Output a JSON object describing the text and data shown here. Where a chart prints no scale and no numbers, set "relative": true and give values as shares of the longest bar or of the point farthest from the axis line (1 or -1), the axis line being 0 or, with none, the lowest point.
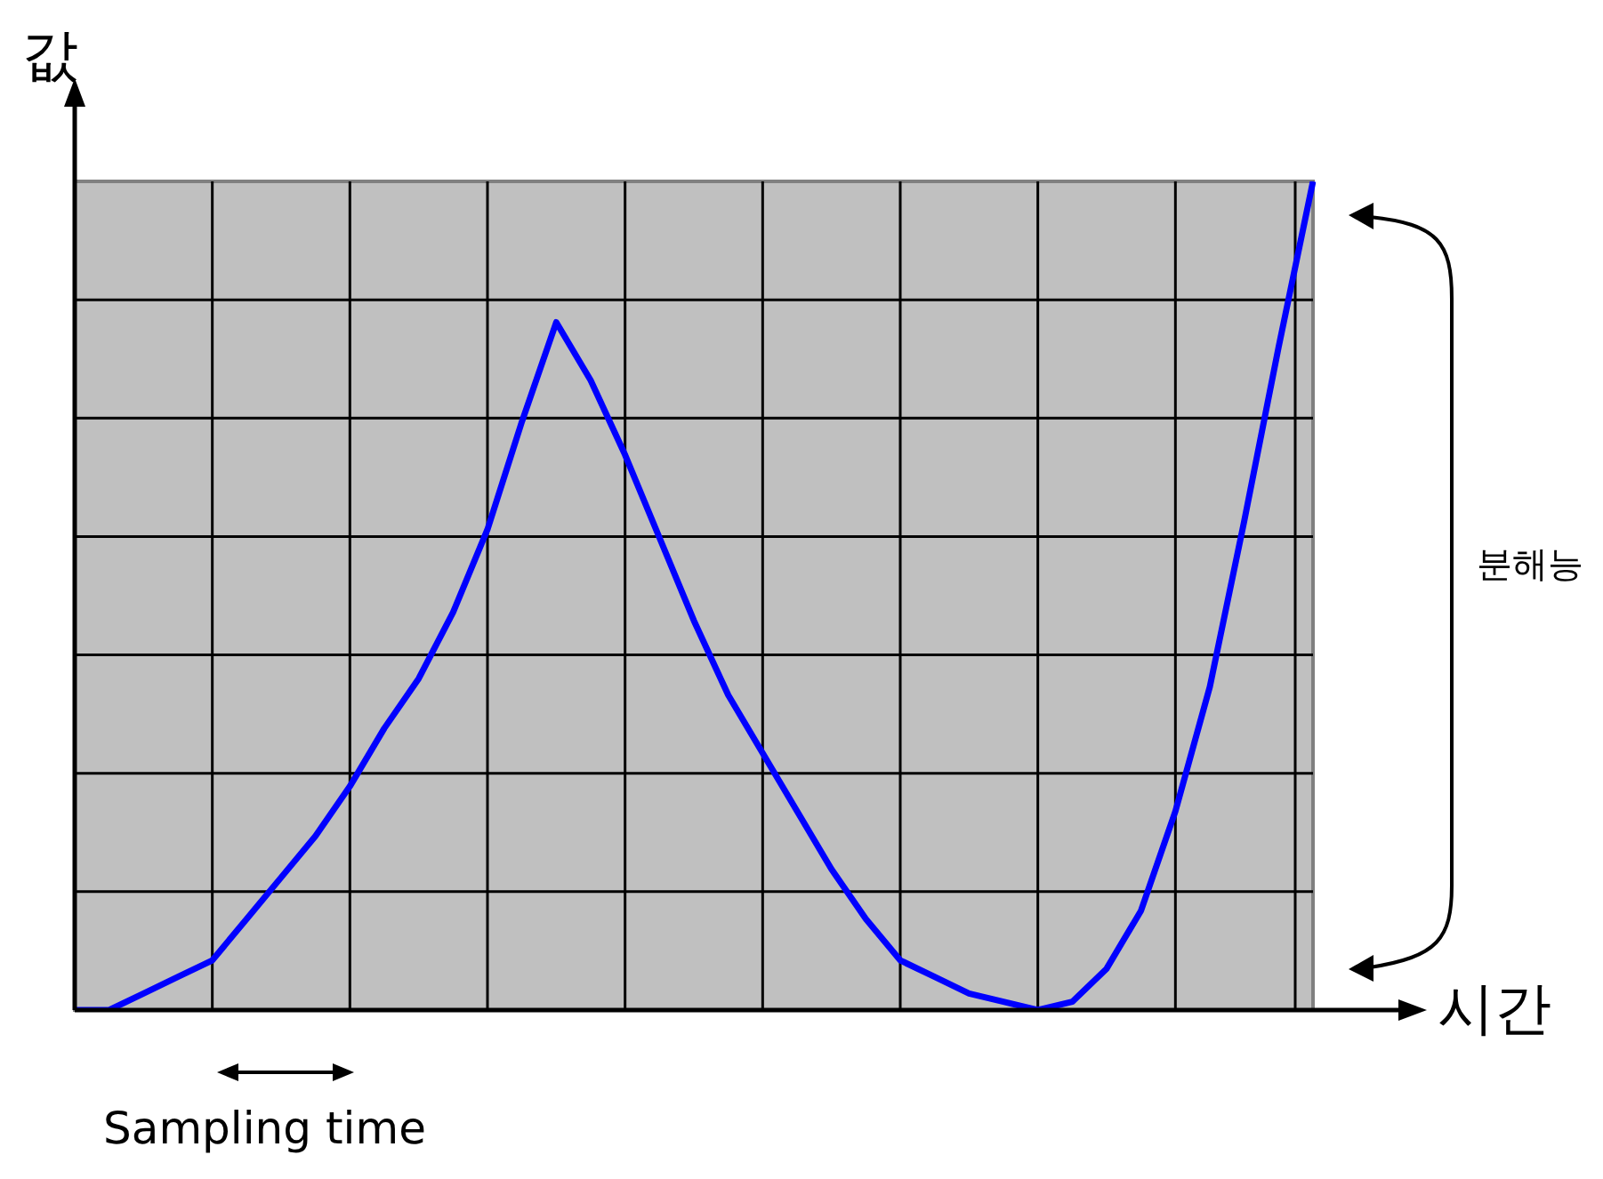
{
  "chart_data": {
    "type": "line",
    "xlabel": "시간",
    "ylabel": "값",
    "relative": true,
    "grid": true,
    "annotations": [
      "Sampling time",
      "분해능"
    ],
    "categories": [
      null,
      null,
      null,
      null,
      null,
      null,
      null,
      null,
      null,
      null,
      null,
      null,
      null,
      null,
      null,
      null,
      null,
      null,
      null,
      null,
      null,
      null,
      null,
      null,
      null,
      null,
      null,
      null,
      null,
      null,
      null,
      null,
      null,
      null,
      null,
      null,
      null
    ],
    "series": [
      {
        "color": "#0000ff",
        "values": [
          0,
          0,
          0.02,
          0.04,
          0.06,
          0.11,
          0.16,
          0.21,
          0.27,
          0.34,
          0.4,
          0.48,
          0.58,
          0.71,
          0.83,
          0.76,
          0.67,
          0.57,
          0.47,
          0.38,
          0.31,
          0.24,
          0.17,
          0.11,
          0.06,
          0.04,
          0.02,
          0.01,
          0,
          0.01,
          0.05,
          0.12,
          0.24,
          0.39,
          0.59,
          0.8,
          1.0
        ]
      }
    ]
  }
}
